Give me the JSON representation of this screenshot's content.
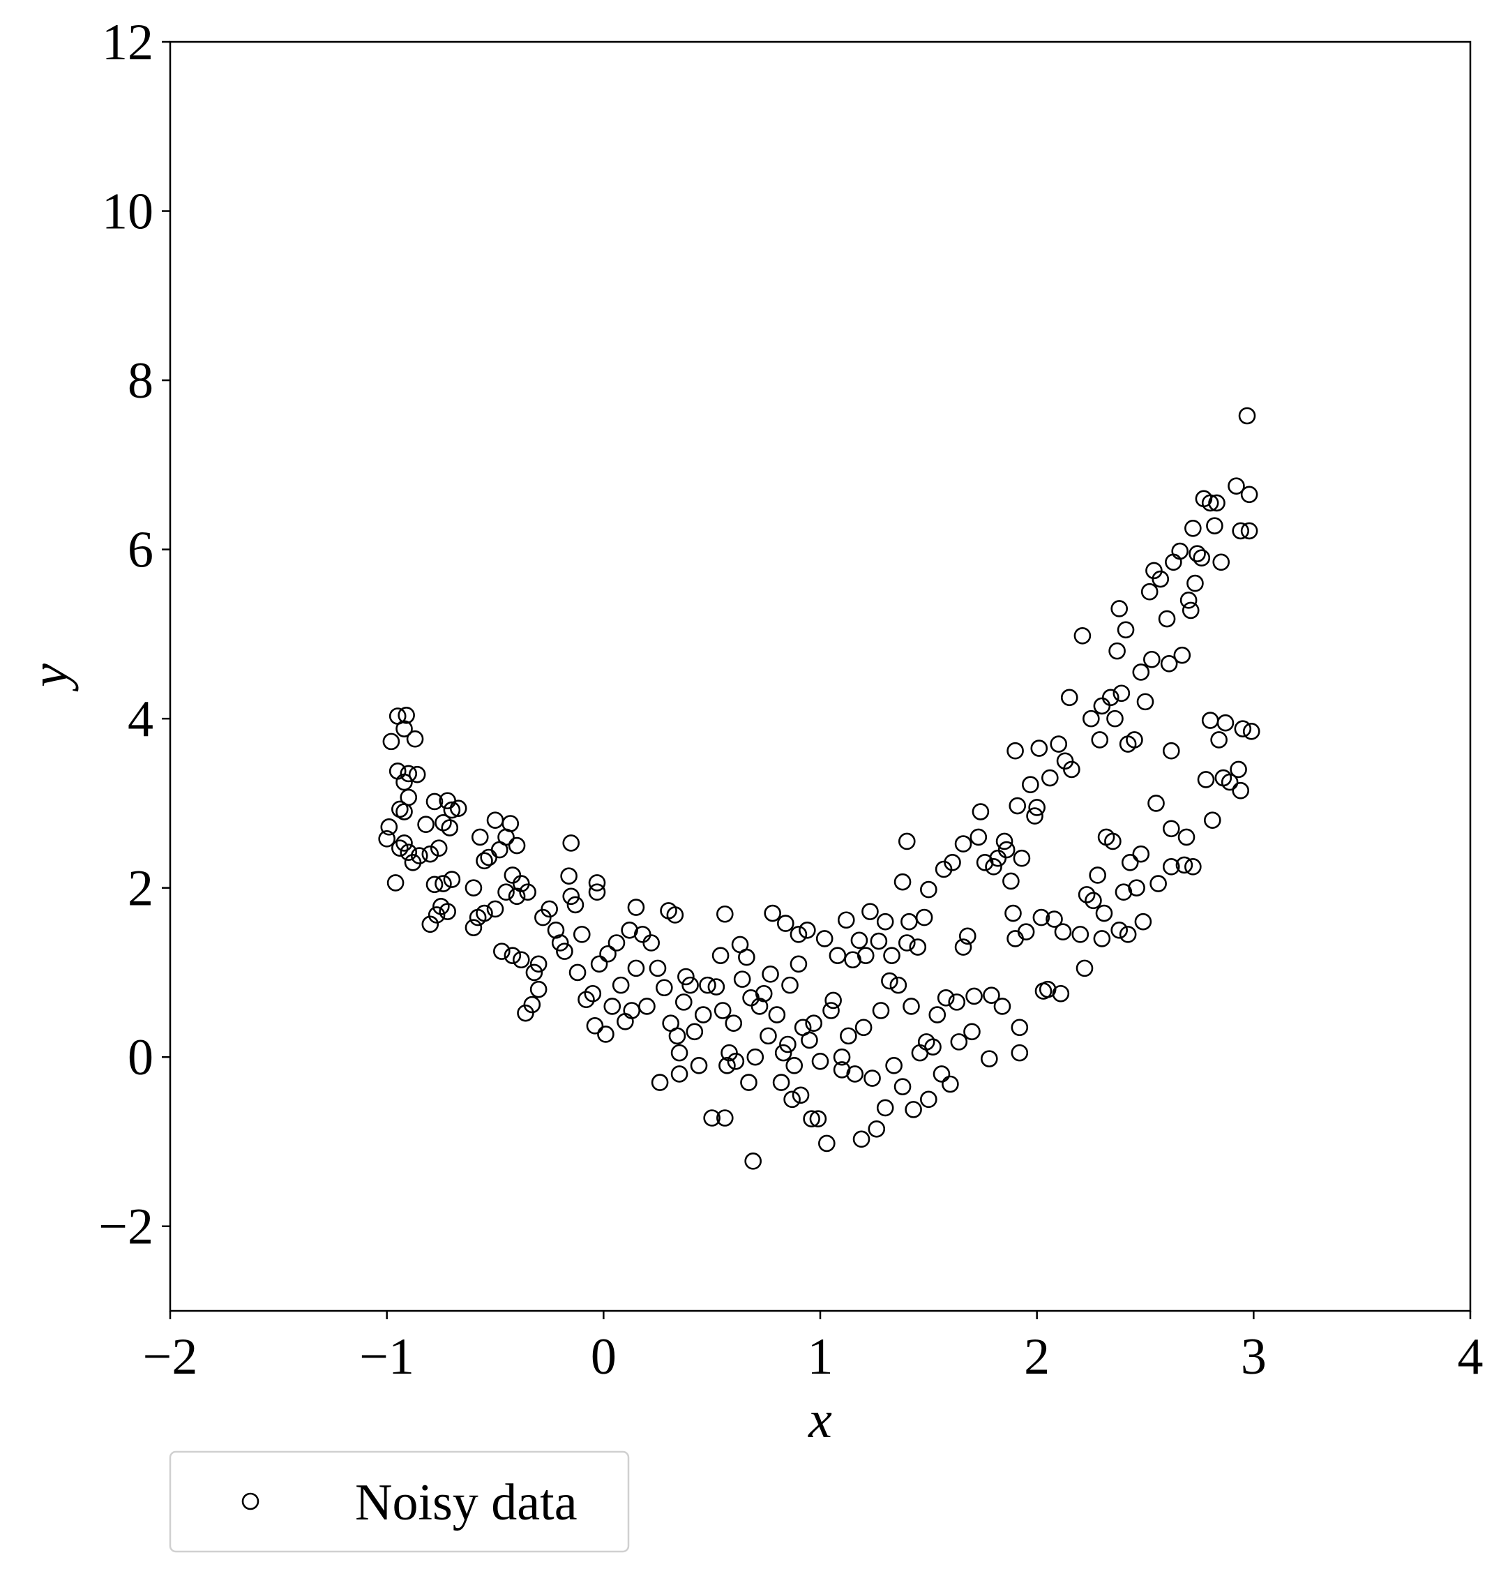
{
  "chart_data": {
    "type": "scatter",
    "xlabel": "x",
    "ylabel": "y",
    "legend": "below",
    "xlim": [
      -2,
      4
    ],
    "ylim": [
      -3,
      12
    ],
    "xticks": [
      {
        "value": -2,
        "label": "−2"
      },
      {
        "value": -1,
        "label": "−1"
      },
      0,
      1,
      2,
      3,
      4
    ],
    "yticks": [
      {
        "value": -2,
        "label": "−2"
      },
      0,
      2,
      4,
      6,
      8,
      10,
      12
    ],
    "x": [
      -0.98,
      -0.95,
      -0.91,
      -0.92,
      -0.87,
      -0.95,
      -0.9,
      -0.86,
      -0.92,
      -0.9,
      -0.94,
      -0.92,
      -0.99,
      -1.0,
      -0.94,
      -0.92,
      -0.9,
      -0.88,
      -0.85,
      -0.96,
      -0.8,
      -0.82,
      -0.78,
      -0.74,
      -0.72,
      -0.7,
      -0.67,
      -0.71,
      -0.76,
      -0.78,
      -0.74,
      -0.7,
      -0.75,
      -0.72,
      -0.77,
      -0.8,
      -0.6,
      -0.57,
      -0.55,
      -0.53,
      -0.5,
      -0.48,
      -0.45,
      -0.43,
      -0.4,
      -0.42,
      -0.38,
      -0.35,
      -0.4,
      -0.45,
      -0.5,
      -0.55,
      -0.58,
      -0.6,
      -0.47,
      -0.42,
      -0.38,
      -0.36,
      -0.33,
      -0.3,
      -0.32,
      -0.3,
      -0.28,
      -0.25,
      -0.22,
      -0.2,
      -0.18,
      -0.15,
      -0.13,
      -0.15,
      -0.16,
      -0.1,
      -0.12,
      -0.08,
      -0.05,
      -0.03,
      -0.03,
      -0.02,
      -0.04,
      0.01,
      0.02,
      0.04,
      0.06,
      0.08,
      0.1,
      0.12,
      0.13,
      0.15,
      0.15,
      0.18,
      0.2,
      0.22,
      0.25,
      0.26,
      0.28,
      0.3,
      0.31,
      0.33,
      0.34,
      0.35,
      0.35,
      0.37,
      0.38,
      0.4,
      0.42,
      0.44,
      0.46,
      0.48,
      0.5,
      0.52,
      0.54,
      0.55,
      0.56,
      0.56,
      0.57,
      0.58,
      0.6,
      0.61,
      0.63,
      0.64,
      0.66,
      0.67,
      0.68,
      0.69,
      0.7,
      0.72,
      0.74,
      0.76,
      0.77,
      0.78,
      0.8,
      0.82,
      0.83,
      0.84,
      0.85,
      0.86,
      0.87,
      0.88,
      0.9,
      0.9,
      0.91,
      0.92,
      0.94,
      0.95,
      0.96,
      0.97,
      0.99,
      1.0,
      1.02,
      1.03,
      1.05,
      1.06,
      1.08,
      1.1,
      1.1,
      1.12,
      1.13,
      1.15,
      1.16,
      1.18,
      1.19,
      1.2,
      1.21,
      1.23,
      1.24,
      1.26,
      1.27,
      1.28,
      1.3,
      1.3,
      1.32,
      1.33,
      1.34,
      1.36,
      1.38,
      1.38,
      1.4,
      1.4,
      1.41,
      1.42,
      1.43,
      1.45,
      1.46,
      1.48,
      1.49,
      1.5,
      1.5,
      1.52,
      1.54,
      1.56,
      1.57,
      1.58,
      1.6,
      1.61,
      1.63,
      1.64,
      1.66,
      1.66,
      1.68,
      1.7,
      1.71,
      1.73,
      1.74,
      1.76,
      1.78,
      1.79,
      1.8,
      1.82,
      1.84,
      1.85,
      1.86,
      1.88,
      1.89,
      1.9,
      1.9,
      1.91,
      1.92,
      1.92,
      1.93,
      1.95,
      1.97,
      1.99,
      2.0,
      2.01,
      2.02,
      2.03,
      2.05,
      2.06,
      2.08,
      2.1,
      2.11,
      2.12,
      2.13,
      2.15,
      2.16,
      2.2,
      2.21,
      2.22,
      2.23,
      2.25,
      2.26,
      2.28,
      2.29,
      2.3,
      2.3,
      2.31,
      2.32,
      2.34,
      2.35,
      2.36,
      2.37,
      2.38,
      2.38,
      2.39,
      2.4,
      2.41,
      2.42,
      2.42,
      2.43,
      2.45,
      2.46,
      2.48,
      2.48,
      2.49,
      2.5,
      2.52,
      2.53,
      2.54,
      2.55,
      2.56,
      2.57,
      2.6,
      2.61,
      2.62,
      2.62,
      2.62,
      2.63,
      2.66,
      2.67,
      2.68,
      2.69,
      2.7,
      2.71,
      2.72,
      2.72,
      2.73,
      2.74,
      2.76,
      2.77,
      2.78,
      2.8,
      2.8,
      2.81,
      2.82,
      2.83,
      2.84,
      2.85,
      2.86,
      2.87,
      2.89,
      2.92,
      2.93,
      2.94,
      2.94,
      2.95,
      2.97,
      2.98,
      2.99,
      2.98
    ],
    "series": [
      {
        "name": "Noisy data",
        "color": "#000000",
        "values": [
          3.73,
          4.03,
          4.04,
          3.88,
          3.76,
          3.38,
          3.35,
          3.34,
          3.25,
          3.07,
          2.93,
          2.9,
          2.72,
          2.58,
          2.47,
          2.53,
          2.42,
          2.3,
          2.38,
          2.06,
          2.4,
          2.75,
          3.02,
          2.77,
          3.03,
          2.92,
          2.94,
          2.71,
          2.47,
          2.04,
          2.05,
          2.1,
          1.78,
          1.72,
          1.68,
          1.57,
          2.0,
          2.6,
          2.32,
          2.36,
          2.8,
          2.45,
          2.6,
          2.76,
          2.5,
          2.15,
          2.05,
          1.95,
          1.9,
          1.95,
          1.75,
          1.7,
          1.65,
          1.53,
          1.25,
          1.2,
          1.15,
          0.52,
          0.62,
          0.8,
          1.0,
          1.1,
          1.65,
          1.75,
          1.5,
          1.35,
          1.25,
          1.9,
          1.8,
          2.53,
          2.14,
          1.45,
          1.0,
          0.68,
          0.75,
          2.06,
          1.95,
          1.1,
          0.37,
          0.27,
          1.22,
          0.6,
          1.35,
          0.85,
          0.42,
          1.5,
          0.55,
          1.05,
          1.77,
          1.45,
          0.6,
          1.35,
          1.05,
          -0.3,
          0.82,
          1.73,
          0.4,
          1.68,
          0.25,
          0.05,
          -0.2,
          0.65,
          0.95,
          0.85,
          0.3,
          -0.1,
          0.5,
          0.85,
          -0.72,
          0.83,
          1.2,
          0.55,
          1.69,
          -0.72,
          -0.1,
          0.05,
          0.4,
          -0.05,
          1.33,
          0.92,
          1.18,
          -0.3,
          0.7,
          -1.23,
          0.0,
          0.6,
          0.75,
          0.25,
          0.98,
          1.7,
          0.5,
          -0.3,
          0.05,
          1.58,
          0.15,
          0.85,
          -0.5,
          -0.1,
          1.45,
          1.1,
          -0.45,
          0.35,
          1.5,
          0.2,
          -0.73,
          0.4,
          -0.73,
          -0.05,
          1.4,
          -1.02,
          0.55,
          0.67,
          1.2,
          0.0,
          -0.15,
          1.62,
          0.25,
          1.15,
          -0.2,
          1.38,
          -0.97,
          0.35,
          1.2,
          1.72,
          -0.25,
          -0.85,
          1.37,
          0.55,
          1.6,
          -0.6,
          0.9,
          1.2,
          -0.1,
          0.85,
          2.07,
          -0.35,
          1.35,
          2.55,
          1.6,
          0.6,
          -0.62,
          1.3,
          0.05,
          1.65,
          0.18,
          -0.5,
          1.98,
          0.12,
          0.5,
          -0.2,
          2.22,
          0.7,
          -0.32,
          2.3,
          0.65,
          0.18,
          2.52,
          1.3,
          1.43,
          0.3,
          0.72,
          2.6,
          2.9,
          2.3,
          -0.02,
          0.73,
          2.25,
          2.35,
          0.6,
          2.55,
          2.45,
          2.08,
          1.7,
          3.62,
          1.4,
          2.97,
          0.35,
          0.05,
          2.35,
          1.48,
          3.22,
          2.85,
          2.95,
          3.65,
          1.65,
          0.78,
          0.8,
          3.3,
          1.63,
          3.7,
          0.75,
          1.48,
          3.5,
          4.25,
          3.4,
          1.45,
          4.98,
          1.05,
          1.92,
          4.0,
          1.85,
          2.15,
          3.75,
          4.15,
          1.4,
          1.7,
          2.6,
          4.25,
          2.55,
          4.0,
          4.8,
          5.3,
          1.5,
          4.3,
          1.95,
          5.05,
          3.7,
          1.45,
          2.3,
          3.75,
          2.0,
          4.55,
          2.4,
          1.6,
          4.2,
          5.5,
          4.7,
          5.75,
          3.0,
          2.05,
          5.65,
          5.18,
          4.65,
          2.25,
          2.7,
          3.62,
          5.85,
          5.98,
          4.75,
          2.27,
          2.6,
          5.4,
          5.28,
          2.25,
          6.25,
          5.6,
          5.95,
          5.9,
          6.6,
          3.28,
          3.98,
          6.55,
          2.8,
          6.28,
          6.55,
          3.75,
          5.85,
          3.3,
          3.95,
          3.25,
          6.75,
          3.4,
          3.15,
          6.22,
          3.88,
          7.58,
          6.65,
          3.85,
          6.22
        ]
      }
    ]
  }
}
